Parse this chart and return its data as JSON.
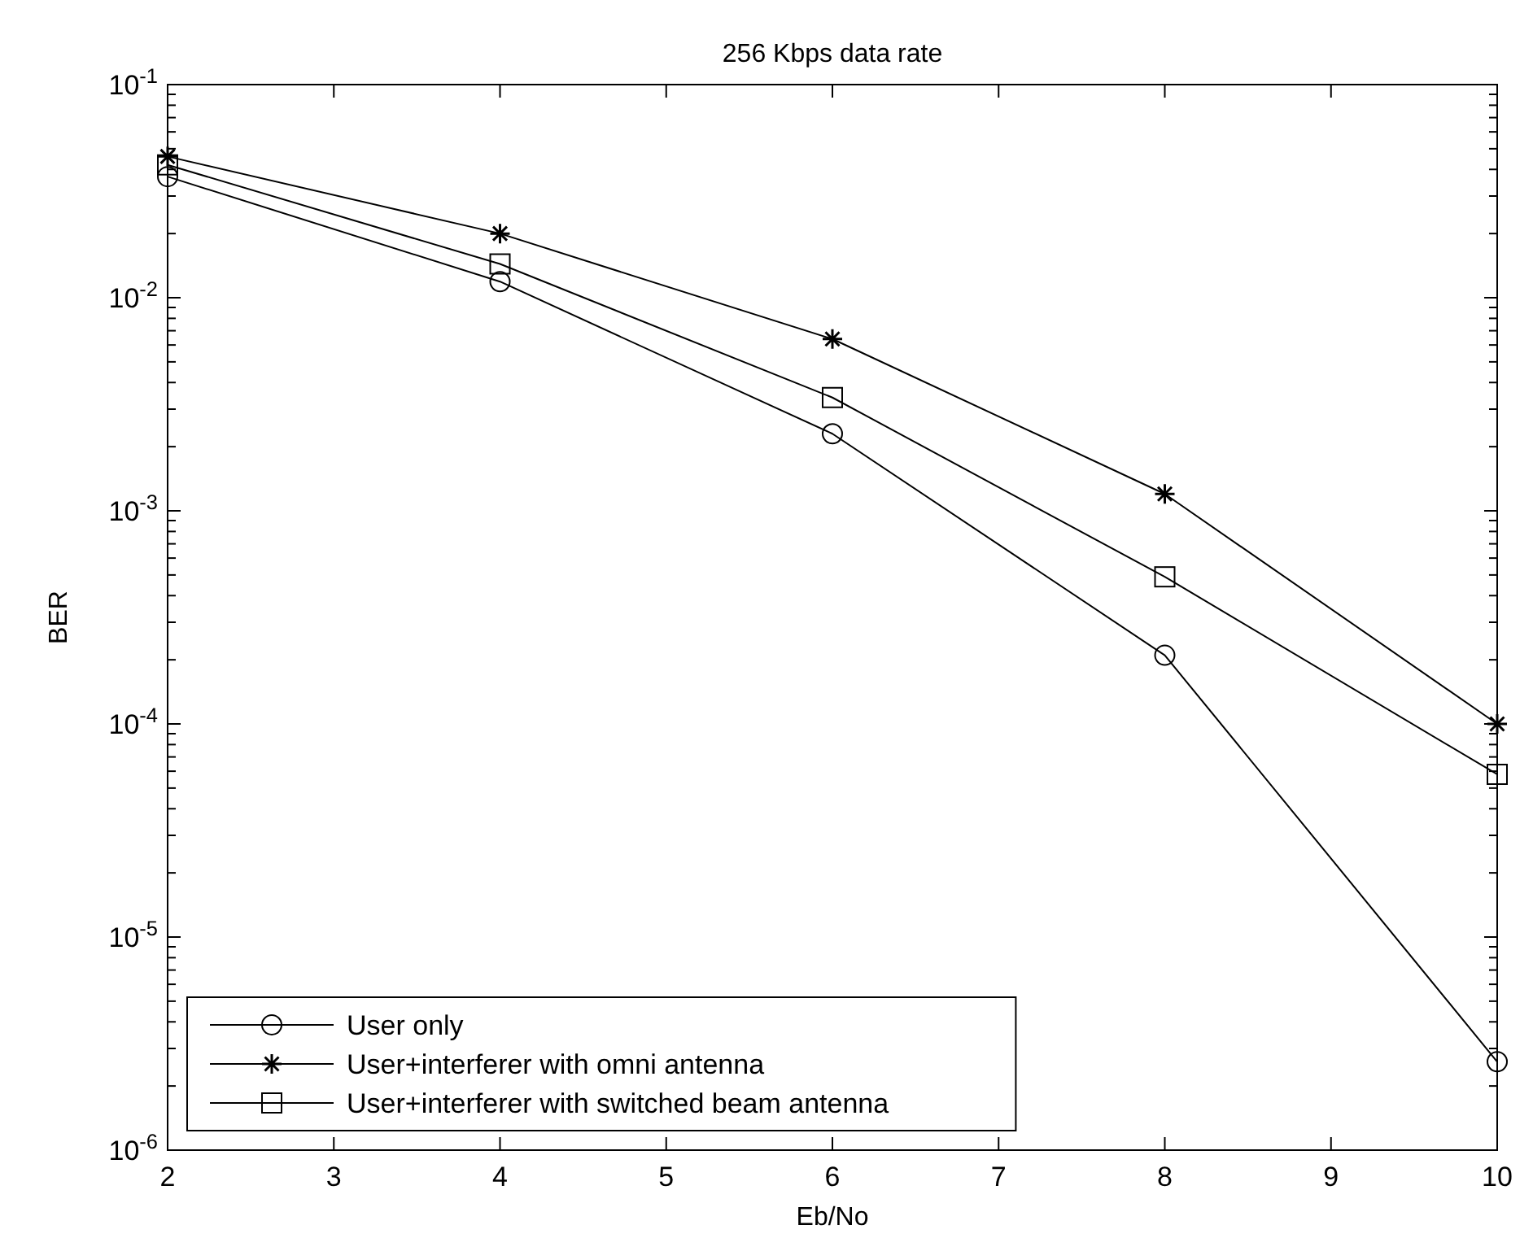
{
  "chart_data": {
    "type": "line",
    "title": "256 Kbps data rate",
    "xlabel": "Eb/No",
    "ylabel": "BER",
    "log": "y",
    "x": [
      2,
      4,
      6,
      8,
      10
    ],
    "xlim": [
      2,
      10
    ],
    "xticks": [
      2,
      3,
      4,
      5,
      6,
      7,
      8,
      9,
      10
    ],
    "ylim": [
      1e-06,
      0.1
    ],
    "yticks": [
      {
        "value": 1e-06,
        "label": "10$^{-6}$"
      },
      {
        "value": 1e-05,
        "label": "10$^{-5}$"
      },
      {
        "value": 0.0001,
        "label": "10$^{-4}$"
      },
      {
        "value": 0.001,
        "label": "10$^{-3}$"
      },
      {
        "value": 0.01,
        "label": "10$^{-2}$"
      },
      {
        "value": 0.1,
        "label": "10$^{-1}$"
      }
    ],
    "legend": "bottom left",
    "line_style": "solid",
    "series": [
      {
        "name": "User only",
        "color": "#000000",
        "marker": "circle",
        "values": [
          0.037,
          0.0119,
          0.0023,
          0.00021,
          2.6e-06
        ]
      },
      {
        "name": "User+interferer with omni antenna",
        "color": "#000000",
        "marker": "cross",
        "values": [
          0.046,
          0.02,
          0.0064,
          0.0012,
          0.0001
        ]
      },
      {
        "name": "User+interferer with switched beam antenna",
        "color": "#000000",
        "marker": "square",
        "values": [
          0.042,
          0.0144,
          0.0034,
          0.00049,
          5.8e-05
        ]
      }
    ]
  }
}
